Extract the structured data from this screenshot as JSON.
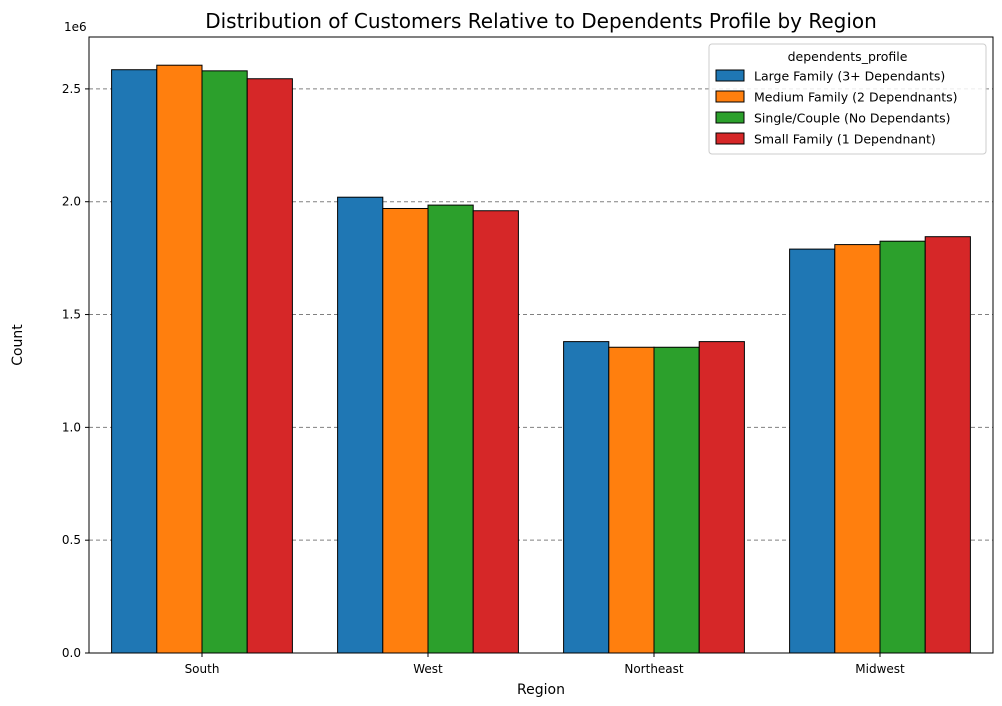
{
  "chart_data": {
    "type": "bar",
    "title": "Distribution of Customers Relative to Dependents Profile by Region",
    "xlabel": "Region",
    "ylabel": "Count",
    "y_scale_note": "1e6",
    "categories": [
      "South",
      "West",
      "Northeast",
      "Midwest"
    ],
    "ylim": [
      0,
      2730000
    ],
    "yticks": [
      0,
      500000,
      1000000,
      1500000,
      2000000,
      2500000
    ],
    "ytick_labels": [
      "0.0",
      "0.5",
      "1.0",
      "1.5",
      "2.0",
      "2.5"
    ],
    "grid": "y dashed",
    "legend": {
      "title": "dependents_profile",
      "placement": "top-right"
    },
    "series": [
      {
        "name": "Large Family (3+ Dependants)",
        "color": "#1f77b4",
        "values": [
          2585000,
          2020000,
          1380000,
          1790000
        ]
      },
      {
        "name": "Medium Family (2 Dependnants)",
        "color": "#ff7f0e",
        "values": [
          2605000,
          1970000,
          1355000,
          1810000
        ]
      },
      {
        "name": "Single/Couple (No Dependants)",
        "color": "#2ca02c",
        "values": [
          2580000,
          1985000,
          1355000,
          1825000
        ]
      },
      {
        "name": "Small Family (1 Dependnant)",
        "color": "#d62728",
        "values": [
          2545000,
          1960000,
          1380000,
          1845000
        ]
      }
    ]
  }
}
